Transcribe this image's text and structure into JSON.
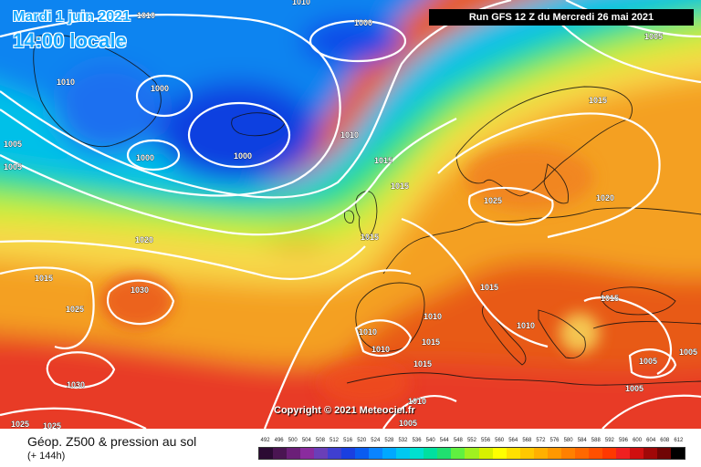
{
  "header": {
    "date_label": "Mardi 1 juin 2021",
    "time_label": "14:00 locale",
    "run_label": "Run GFS 12 Z du Mercredi 26 mai 2021"
  },
  "map": {
    "copyright": "Copyright © 2021 Meteociel.fr",
    "isobar_color": "#ffffff",
    "pressure_labels": [
      "1010",
      "1010",
      "1000",
      "1005",
      "1010",
      "1000",
      "1005",
      "1005",
      "1000",
      "1000",
      "1010",
      "1015",
      "1015",
      "1015",
      "1020",
      "1015",
      "1030",
      "1025",
      "1030",
      "1025",
      "1025",
      "1025",
      "1020",
      "1015",
      "1015",
      "1010",
      "1010",
      "1010",
      "1015",
      "1015",
      "1015",
      "1010",
      "1005",
      "1005",
      "1005",
      "1010",
      "1005"
    ],
    "features": {
      "low_north_atlantic": "low-pressure-center",
      "azores_high": "high-pressure-center",
      "scandinavia_high": "high-pressure-area"
    }
  },
  "footer": {
    "caption": "Géop. Z500 & pression au sol",
    "caption_sub": "(+ 144h)"
  },
  "legend": {
    "ticks": [
      "492",
      "496",
      "500",
      "504",
      "508",
      "512",
      "516",
      "520",
      "524",
      "528",
      "532",
      "536",
      "540",
      "544",
      "548",
      "552",
      "556",
      "560",
      "564",
      "568",
      "572",
      "576",
      "580",
      "584",
      "588",
      "592",
      "596",
      "600",
      "604",
      "608",
      "612"
    ],
    "colors": [
      "#2b0a33",
      "#4a1552",
      "#6b1f78",
      "#8a2b9e",
      "#6a3fb8",
      "#3f3fd0",
      "#1a3fe0",
      "#0a5cf0",
      "#0a84ff",
      "#00a8ff",
      "#00c8f0",
      "#00e0d0",
      "#00e0a0",
      "#20e070",
      "#60f040",
      "#a0f020",
      "#d8f000",
      "#ffff00",
      "#ffe000",
      "#ffc800",
      "#ffb000",
      "#ff9800",
      "#ff8000",
      "#ff6800",
      "#ff5000",
      "#ff3800",
      "#f02020",
      "#d01010",
      "#a00808",
      "#700404",
      "#000000"
    ]
  }
}
